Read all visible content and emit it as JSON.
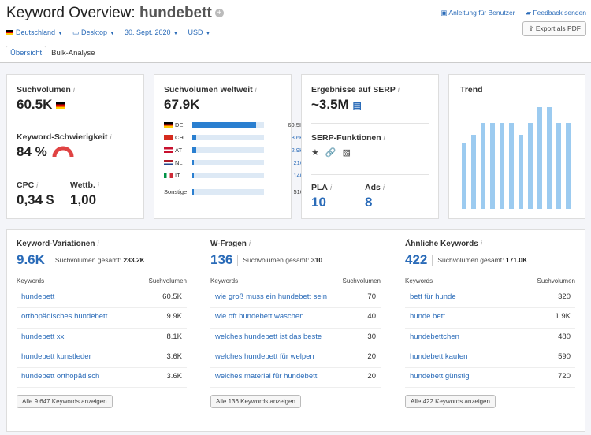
{
  "header": {
    "title": "Keyword Overview:",
    "keyword": "hundebett",
    "manual": "Anleitung für Benutzer",
    "feedback": "Feedback senden",
    "export": "Export als PDF"
  },
  "filters": {
    "country": "Deutschland",
    "device": "Desktop",
    "date": "30. Sept. 2020",
    "currency": "USD"
  },
  "tabs": [
    "Übersicht",
    "Bulk-Analyse"
  ],
  "card1": {
    "vol_label": "Suchvolumen",
    "vol": "60.5K",
    "kd_label": "Keyword-Schwierigkeit",
    "kd": "84 %",
    "cpc_label": "CPC",
    "cpc": "0,34 $",
    "comp_label": "Wettb.",
    "comp": "1,00"
  },
  "card2": {
    "label": "Suchvolumen weltweit",
    "value": "67.9K",
    "rows": [
      {
        "cc": "DE",
        "val": "60.5K",
        "frac": 0.89
      },
      {
        "cc": "CH",
        "val": "3.6K",
        "frac": 0.06
      },
      {
        "cc": "AT",
        "val": "2.9K",
        "frac": 0.05
      },
      {
        "cc": "NL",
        "val": "210",
        "frac": 0.02
      },
      {
        "cc": "IT",
        "val": "140",
        "frac": 0.02
      }
    ],
    "other_label": "Sonstige",
    "other_val": "510",
    "other_frac": 0.02
  },
  "card3": {
    "serp_label": "Ergebnisse auf SERP",
    "serp": "~3.5M",
    "feat_label": "SERP-Funktionen",
    "pla_label": "PLA",
    "pla": "10",
    "ads_label": "Ads",
    "ads": "8"
  },
  "trend": {
    "label": "Trend",
    "values": [
      0.59,
      0.67,
      0.78,
      0.78,
      0.78,
      0.78,
      0.67,
      0.78,
      0.92,
      0.92,
      0.78,
      0.78
    ]
  },
  "variations": {
    "label": "Keyword-Variationen",
    "count": "9.6K",
    "total_label": "Suchvolumen gesamt:",
    "total": "233.2K",
    "col1": "Keywords",
    "col2": "Suchvolumen",
    "rows": [
      {
        "k": "hundebett",
        "v": "60.5K"
      },
      {
        "k": "orthopädisches hundebett",
        "v": "9.9K"
      },
      {
        "k": "hundebett xxl",
        "v": "8.1K"
      },
      {
        "k": "hundebett kunstleder",
        "v": "3.6K"
      },
      {
        "k": "hundebett orthopädisch",
        "v": "3.6K"
      }
    ],
    "button": "Alle 9.647 Keywords anzeigen"
  },
  "questions": {
    "label": "W-Fragen",
    "count": "136",
    "total_label": "Suchvolumen gesamt:",
    "total": "310",
    "col1": "Keywords",
    "col2": "Suchvolumen",
    "rows": [
      {
        "k": "wie groß muss ein hundebett sein",
        "v": "70"
      },
      {
        "k": "wie oft hundebett waschen",
        "v": "40"
      },
      {
        "k": "welches hundebett ist das beste",
        "v": "30"
      },
      {
        "k": "welches hundebett für welpen",
        "v": "20"
      },
      {
        "k": "welches material für hundebett",
        "v": "20"
      }
    ],
    "button": "Alle 136 Keywords anzeigen"
  },
  "related": {
    "label": "Ähnliche Keywords",
    "count": "422",
    "total_label": "Suchvolumen gesamt:",
    "total": "171.0K",
    "col1": "Keywords",
    "col2": "Suchvolumen",
    "rows": [
      {
        "k": "bett für hunde",
        "v": "320"
      },
      {
        "k": "hunde bett",
        "v": "1.9K"
      },
      {
        "k": "hundebettchen",
        "v": "480"
      },
      {
        "k": "hundebett kaufen",
        "v": "590"
      },
      {
        "k": "hundebett günstig",
        "v": "720"
      }
    ],
    "button": "Alle 422 Keywords anzeigen"
  }
}
